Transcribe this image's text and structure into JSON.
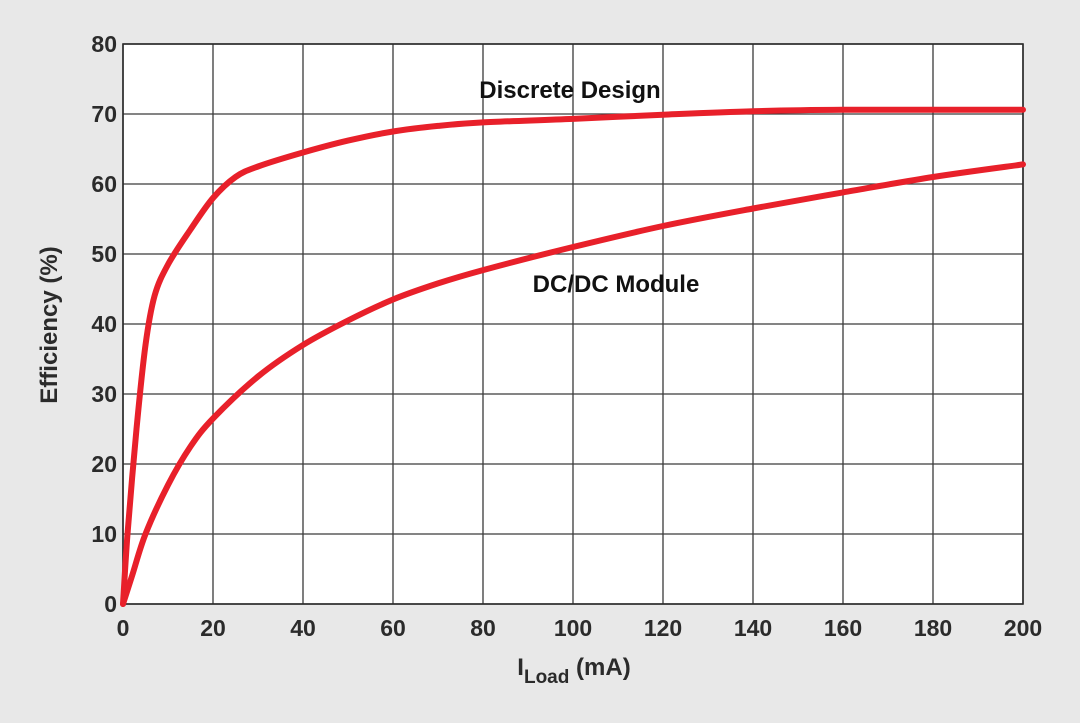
{
  "chart_data": {
    "type": "line",
    "title": "",
    "xlabel": "I",
    "xlabel_sub": "Load",
    "xlabel_unit": " (mA)",
    "ylabel": "Efficiency (%)",
    "xlim": [
      0,
      200
    ],
    "ylim": [
      0,
      80
    ],
    "x_ticks": [
      0,
      20,
      40,
      60,
      80,
      100,
      120,
      140,
      160,
      180,
      200
    ],
    "y_ticks": [
      0,
      10,
      20,
      30,
      40,
      50,
      60,
      70,
      80
    ],
    "grid": true,
    "legend": "none",
    "line_color": "#e8202a",
    "plot_background": "#ffffff",
    "page_background": "#e8e8e8",
    "series": [
      {
        "name": "Discrete Design",
        "x": [
          0,
          1,
          3,
          5,
          7,
          10,
          15,
          20,
          25,
          30,
          40,
          50,
          60,
          70,
          80,
          100,
          120,
          140,
          160,
          180,
          200
        ],
        "y": [
          0,
          10,
          25,
          37,
          44,
          48.5,
          53.5,
          58,
          61,
          62.5,
          64.5,
          66.2,
          67.5,
          68.3,
          68.8,
          69.3,
          69.9,
          70.4,
          70.6,
          70.6,
          70.6
        ]
      },
      {
        "name": "DC/DC Module",
        "x": [
          0,
          2,
          5,
          10,
          15,
          20,
          30,
          40,
          50,
          60,
          70,
          80,
          100,
          120,
          140,
          160,
          180,
          200
        ],
        "y": [
          0,
          4,
          10,
          17,
          22.5,
          26.5,
          32.5,
          37,
          40.5,
          43.5,
          45.8,
          47.7,
          51,
          54,
          56.5,
          58.8,
          61,
          62.8
        ]
      }
    ]
  }
}
